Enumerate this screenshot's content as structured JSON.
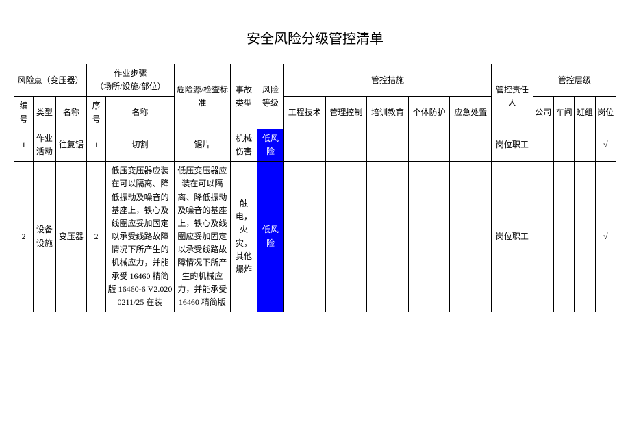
{
  "title": "安全风险分级管控清单",
  "colors": {
    "risk_low_bg": "#0000ff",
    "risk_low_fg": "#ffffff",
    "border": "#000000",
    "background": "#ffffff",
    "text": "#000000"
  },
  "header": {
    "risk_point_group": "风险点（变压器）",
    "step_group": "作业步骤\n（场所/设施/部位）",
    "hazard": "危险源/检查标准",
    "accident_type": "事故类型",
    "risk_level": "风险等级",
    "control_measures": "管控措施",
    "responsible": "管控责任人",
    "control_levels": "管控层级",
    "num": "编号",
    "type": "类型",
    "name": "名称",
    "seq": "序号",
    "step_name": "名称",
    "eng": "工程技术",
    "mgmt": "管理控制",
    "train": "培训教育",
    "ppe": "个体防护",
    "emerg": "应急处置",
    "company": "公司",
    "workshop": "车间",
    "team": "班组",
    "post": "岗位"
  },
  "rows": [
    {
      "num": "1",
      "type": "作业活动",
      "name": "往复锯",
      "seq": "1",
      "step_name": "切割",
      "hazard": "锯片",
      "accident_type": "机械伤害",
      "risk_level": "低风险",
      "risk_bg": "#0000ff",
      "eng": "",
      "mgmt": "",
      "train": "",
      "ppe": "",
      "emerg": "",
      "responsible": "岗位职工",
      "company": "",
      "workshop": "",
      "team": "",
      "post": "√"
    },
    {
      "num": "2",
      "type": "设备设施",
      "name": "变压器",
      "seq": "2",
      "step_name": "低压变压器应装在可以隔离、降低振动及噪音的基座上，铁心及线圈应妥加固定以承受线路故障情况下所产生的机械应力，并能承受 16460 精简版 16460-6 V2.0200211/25 在装",
      "hazard": "低压变压器应装在可以隔离、降低振动及噪音的基座上，铁心及线圈应妥加固定以承受线路故障情况下所产生的机械应力，并能承受 16460 精简版",
      "accident_type": "触电，火灾，其他爆炸",
      "risk_level": "低风险",
      "risk_bg": "#0000ff",
      "eng": "",
      "mgmt": "",
      "train": "",
      "ppe": "",
      "emerg": "",
      "responsible": "岗位职工",
      "company": "",
      "workshop": "",
      "team": "",
      "post": "√"
    }
  ]
}
